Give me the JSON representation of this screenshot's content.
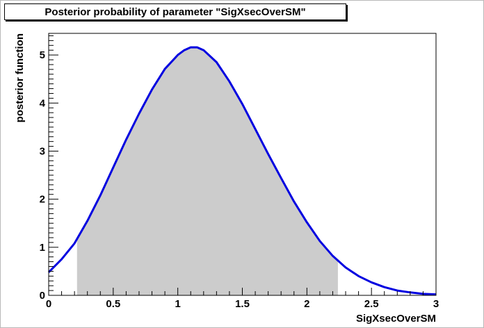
{
  "chart_data": {
    "type": "area",
    "title": "Posterior probability of parameter \"SigXsecOverSM\"",
    "xlabel": "SigXsecOverSM",
    "ylabel": "posterior function",
    "xlim": [
      0,
      3
    ],
    "ylim": [
      0,
      5.45
    ],
    "x_ticks": [
      "0",
      "0.5",
      "1",
      "1.5",
      "2",
      "2.5",
      "3"
    ],
    "y_ticks": [
      "0",
      "1",
      "2",
      "3",
      "4",
      "5"
    ],
    "grid": false,
    "shaded_interval": [
      0.22,
      2.24
    ],
    "colors": {
      "line": "#0000e0",
      "fill": "#cccccc"
    },
    "series": [
      {
        "x": [
          0,
          0.1,
          0.2,
          0.3,
          0.4,
          0.5,
          0.6,
          0.7,
          0.8,
          0.9,
          1.0,
          1.05,
          1.1,
          1.15,
          1.2,
          1.3,
          1.4,
          1.5,
          1.6,
          1.7,
          1.8,
          1.9,
          2.0,
          2.1,
          2.2,
          2.3,
          2.4,
          2.5,
          2.6,
          2.7,
          2.8,
          2.9,
          3.0
        ],
        "y": [
          0.48,
          0.75,
          1.08,
          1.55,
          2.08,
          2.66,
          3.24,
          3.78,
          4.28,
          4.71,
          5.0,
          5.1,
          5.16,
          5.16,
          5.1,
          4.85,
          4.45,
          3.98,
          3.46,
          2.94,
          2.44,
          1.95,
          1.52,
          1.13,
          0.82,
          0.58,
          0.4,
          0.27,
          0.17,
          0.1,
          0.06,
          0.03,
          0.02
        ]
      }
    ]
  }
}
